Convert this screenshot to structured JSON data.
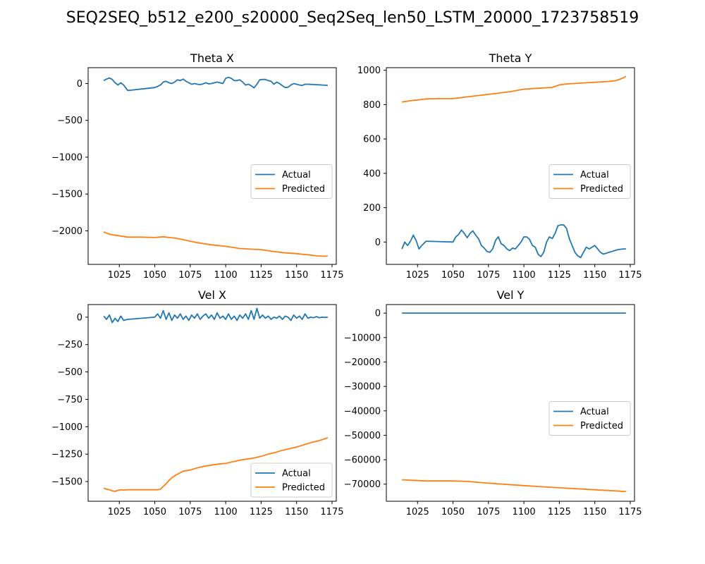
{
  "figure": {
    "suptitle": "SEQ2SEQ_b512_e200_s20000_Seq2Seq_len50_LSTM_20000_1723758519"
  },
  "colors": {
    "actual": "#1f77b4",
    "predicted": "#ff7f0e",
    "axis": "#000000"
  },
  "legend": {
    "actual": "Actual",
    "predicted": "Predicted"
  },
  "chart_data": [
    {
      "type": "line",
      "title": "Theta X",
      "xlim": [
        1003,
        1178
      ],
      "ylim": [
        -2455,
        215
      ],
      "xticks": [
        1025,
        1050,
        1075,
        1100,
        1125,
        1150,
        1175
      ],
      "yticks": [
        0,
        -500,
        -1000,
        -1500,
        -2000
      ],
      "legend_position": "center-right",
      "series": [
        {
          "name": "Actual",
          "color": "#1f77b4",
          "x": [
            1014,
            1016,
            1018,
            1020,
            1022,
            1024,
            1026,
            1028,
            1031,
            1050,
            1052,
            1054,
            1056,
            1058,
            1060,
            1062,
            1064,
            1066,
            1068,
            1070,
            1072,
            1074,
            1076,
            1078,
            1080,
            1082,
            1084,
            1086,
            1088,
            1090,
            1092,
            1094,
            1096,
            1098,
            1100,
            1102,
            1104,
            1106,
            1108,
            1110,
            1112,
            1114,
            1116,
            1118,
            1120,
            1122,
            1124,
            1126,
            1128,
            1130,
            1132,
            1134,
            1136,
            1138,
            1140,
            1142,
            1144,
            1146,
            1148,
            1150,
            1152,
            1154,
            1156,
            1158,
            1160,
            1162,
            1164,
            1166,
            1168,
            1170,
            1172
          ],
          "y": [
            40,
            60,
            75,
            55,
            10,
            -20,
            10,
            -20,
            -95,
            -55,
            -40,
            -20,
            20,
            30,
            10,
            0,
            20,
            50,
            40,
            60,
            30,
            10,
            -10,
            0,
            -10,
            -15,
            -5,
            10,
            -5,
            0,
            10,
            20,
            10,
            0,
            70,
            85,
            70,
            40,
            40,
            50,
            20,
            -20,
            -10,
            -30,
            -60,
            -10,
            50,
            55,
            55,
            40,
            30,
            -10,
            20,
            0,
            -30,
            -55,
            -50,
            -20,
            0,
            -10,
            -20,
            -25,
            -10,
            -10,
            -12,
            -14,
            -16,
            -18,
            -20,
            -22,
            -25
          ]
        },
        {
          "name": "Predicted",
          "color": "#ff7f0e",
          "x": [
            1014,
            1018,
            1022,
            1026,
            1031,
            1040,
            1050,
            1056,
            1060,
            1065,
            1070,
            1080,
            1090,
            1100,
            1110,
            1120,
            1125,
            1130,
            1140,
            1150,
            1160,
            1165,
            1170,
            1172
          ],
          "y": [
            -2015,
            -2045,
            -2060,
            -2070,
            -2085,
            -2085,
            -2090,
            -2080,
            -2090,
            -2100,
            -2120,
            -2160,
            -2190,
            -2210,
            -2240,
            -2250,
            -2255,
            -2270,
            -2295,
            -2310,
            -2330,
            -2340,
            -2345,
            -2340
          ]
        }
      ]
    },
    {
      "type": "line",
      "title": "Theta Y",
      "xlim": [
        1003,
        1178
      ],
      "ylim": [
        -130,
        1015
      ],
      "xticks": [
        1025,
        1050,
        1075,
        1100,
        1125,
        1150,
        1175
      ],
      "yticks": [
        0,
        200,
        400,
        600,
        800,
        1000
      ],
      "legend_position": "center-right",
      "series": [
        {
          "name": "Actual",
          "color": "#1f77b4",
          "x": [
            1014,
            1016,
            1018,
            1020,
            1022,
            1024,
            1026,
            1028,
            1031,
            1050,
            1052,
            1054,
            1056,
            1058,
            1060,
            1062,
            1064,
            1066,
            1068,
            1070,
            1072,
            1074,
            1076,
            1078,
            1080,
            1082,
            1084,
            1086,
            1088,
            1090,
            1092,
            1094,
            1096,
            1098,
            1100,
            1102,
            1104,
            1106,
            1108,
            1110,
            1112,
            1114,
            1116,
            1118,
            1120,
            1122,
            1124,
            1126,
            1128,
            1130,
            1132,
            1134,
            1136,
            1138,
            1140,
            1142,
            1144,
            1146,
            1148,
            1150,
            1152,
            1154,
            1156,
            1158,
            1160,
            1162,
            1164,
            1166,
            1168,
            1170,
            1172
          ],
          "y": [
            -40,
            0,
            -20,
            5,
            40,
            10,
            -40,
            -20,
            5,
            0,
            30,
            45,
            70,
            50,
            25,
            50,
            65,
            40,
            20,
            -20,
            -35,
            -55,
            -60,
            -40,
            10,
            30,
            -10,
            -20,
            -40,
            -50,
            -35,
            -40,
            -20,
            0,
            30,
            30,
            15,
            -20,
            -30,
            -70,
            -85,
            -60,
            0,
            30,
            20,
            50,
            95,
            100,
            100,
            80,
            20,
            -20,
            -60,
            -80,
            -90,
            -60,
            -30,
            -40,
            -30,
            -20,
            -40,
            -60,
            -70,
            -65,
            -60,
            -55,
            -50,
            -45,
            -42,
            -40,
            -40
          ]
        },
        {
          "name": "Predicted",
          "color": "#ff7f0e",
          "x": [
            1014,
            1018,
            1022,
            1026,
            1031,
            1040,
            1050,
            1055,
            1060,
            1070,
            1080,
            1090,
            1100,
            1110,
            1120,
            1125,
            1130,
            1140,
            1150,
            1160,
            1165,
            1170,
            1172
          ],
          "y": [
            815,
            820,
            825,
            828,
            833,
            835,
            835,
            840,
            845,
            855,
            865,
            875,
            890,
            895,
            900,
            915,
            920,
            925,
            930,
            935,
            940,
            955,
            965
          ]
        }
      ]
    },
    {
      "type": "line",
      "title": "Vel X",
      "xlim": [
        1003,
        1178
      ],
      "ylim": [
        -1680,
        115
      ],
      "xticks": [
        1025,
        1050,
        1075,
        1100,
        1125,
        1150,
        1175
      ],
      "yticks": [
        0,
        -250,
        -500,
        -750,
        -1000,
        -1250,
        -1500
      ],
      "legend_position": "lower-right",
      "series": [
        {
          "name": "Actual",
          "color": "#1f77b4",
          "x": [
            1014,
            1016,
            1018,
            1020,
            1022,
            1024,
            1026,
            1028,
            1031,
            1050,
            1052,
            1054,
            1056,
            1058,
            1060,
            1062,
            1064,
            1066,
            1068,
            1070,
            1072,
            1074,
            1076,
            1078,
            1080,
            1082,
            1084,
            1086,
            1088,
            1090,
            1092,
            1094,
            1096,
            1098,
            1100,
            1102,
            1104,
            1106,
            1108,
            1110,
            1112,
            1114,
            1116,
            1118,
            1120,
            1122,
            1124,
            1126,
            1128,
            1130,
            1132,
            1134,
            1136,
            1138,
            1140,
            1142,
            1144,
            1146,
            1148,
            1150,
            1152,
            1154,
            1156,
            1158,
            1160,
            1162,
            1164,
            1166,
            1168,
            1170,
            1172
          ],
          "y": [
            10,
            -20,
            20,
            -50,
            -10,
            -40,
            10,
            -30,
            -20,
            0,
            30,
            -10,
            60,
            -20,
            40,
            -30,
            20,
            -10,
            30,
            -20,
            10,
            -30,
            20,
            -10,
            30,
            -20,
            10,
            30,
            -10,
            20,
            -20,
            40,
            -10,
            10,
            -20,
            30,
            -20,
            10,
            -30,
            20,
            -10,
            30,
            -20,
            60,
            -20,
            80,
            -10,
            20,
            -10,
            10,
            -20,
            0,
            -10,
            10,
            -20,
            10,
            0,
            -30,
            20,
            -10,
            10,
            -20,
            30,
            -10,
            0,
            -5,
            5,
            -5,
            0,
            -3,
            0
          ]
        },
        {
          "name": "Predicted",
          "color": "#ff7f0e",
          "x": [
            1014,
            1016,
            1018,
            1020,
            1022,
            1024,
            1026,
            1028,
            1031,
            1040,
            1050,
            1052,
            1054,
            1056,
            1058,
            1060,
            1062,
            1065,
            1068,
            1070,
            1075,
            1080,
            1085,
            1090,
            1095,
            1100,
            1105,
            1110,
            1115,
            1120,
            1125,
            1130,
            1135,
            1140,
            1145,
            1150,
            1155,
            1160,
            1165,
            1170,
            1172
          ],
          "y": [
            -1560,
            -1570,
            -1575,
            -1585,
            -1590,
            -1580,
            -1575,
            -1578,
            -1575,
            -1575,
            -1575,
            -1575,
            -1570,
            -1545,
            -1520,
            -1490,
            -1465,
            -1440,
            -1420,
            -1405,
            -1395,
            -1375,
            -1360,
            -1350,
            -1340,
            -1335,
            -1320,
            -1305,
            -1295,
            -1285,
            -1270,
            -1250,
            -1235,
            -1215,
            -1200,
            -1185,
            -1165,
            -1145,
            -1130,
            -1110,
            -1100
          ]
        }
      ]
    },
    {
      "type": "line",
      "title": "Vel Y",
      "xlim": [
        1003,
        1178
      ],
      "ylim": [
        -77000,
        3500
      ],
      "xticks": [
        1025,
        1050,
        1075,
        1100,
        1125,
        1150,
        1175
      ],
      "yticks": [
        0,
        -10000,
        -20000,
        -30000,
        -40000,
        -50000,
        -60000,
        -70000
      ],
      "legend_position": "center-right",
      "series": [
        {
          "name": "Actual",
          "color": "#1f77b4",
          "x": [
            1014,
            1172
          ],
          "y": [
            0,
            0
          ]
        },
        {
          "name": "Predicted",
          "color": "#ff7f0e",
          "x": [
            1014,
            1020,
            1031,
            1050,
            1060,
            1075,
            1100,
            1125,
            1150,
            1172
          ],
          "y": [
            -68200,
            -68400,
            -68700,
            -68700,
            -68900,
            -69600,
            -70600,
            -71500,
            -72300,
            -73000
          ]
        }
      ]
    }
  ]
}
